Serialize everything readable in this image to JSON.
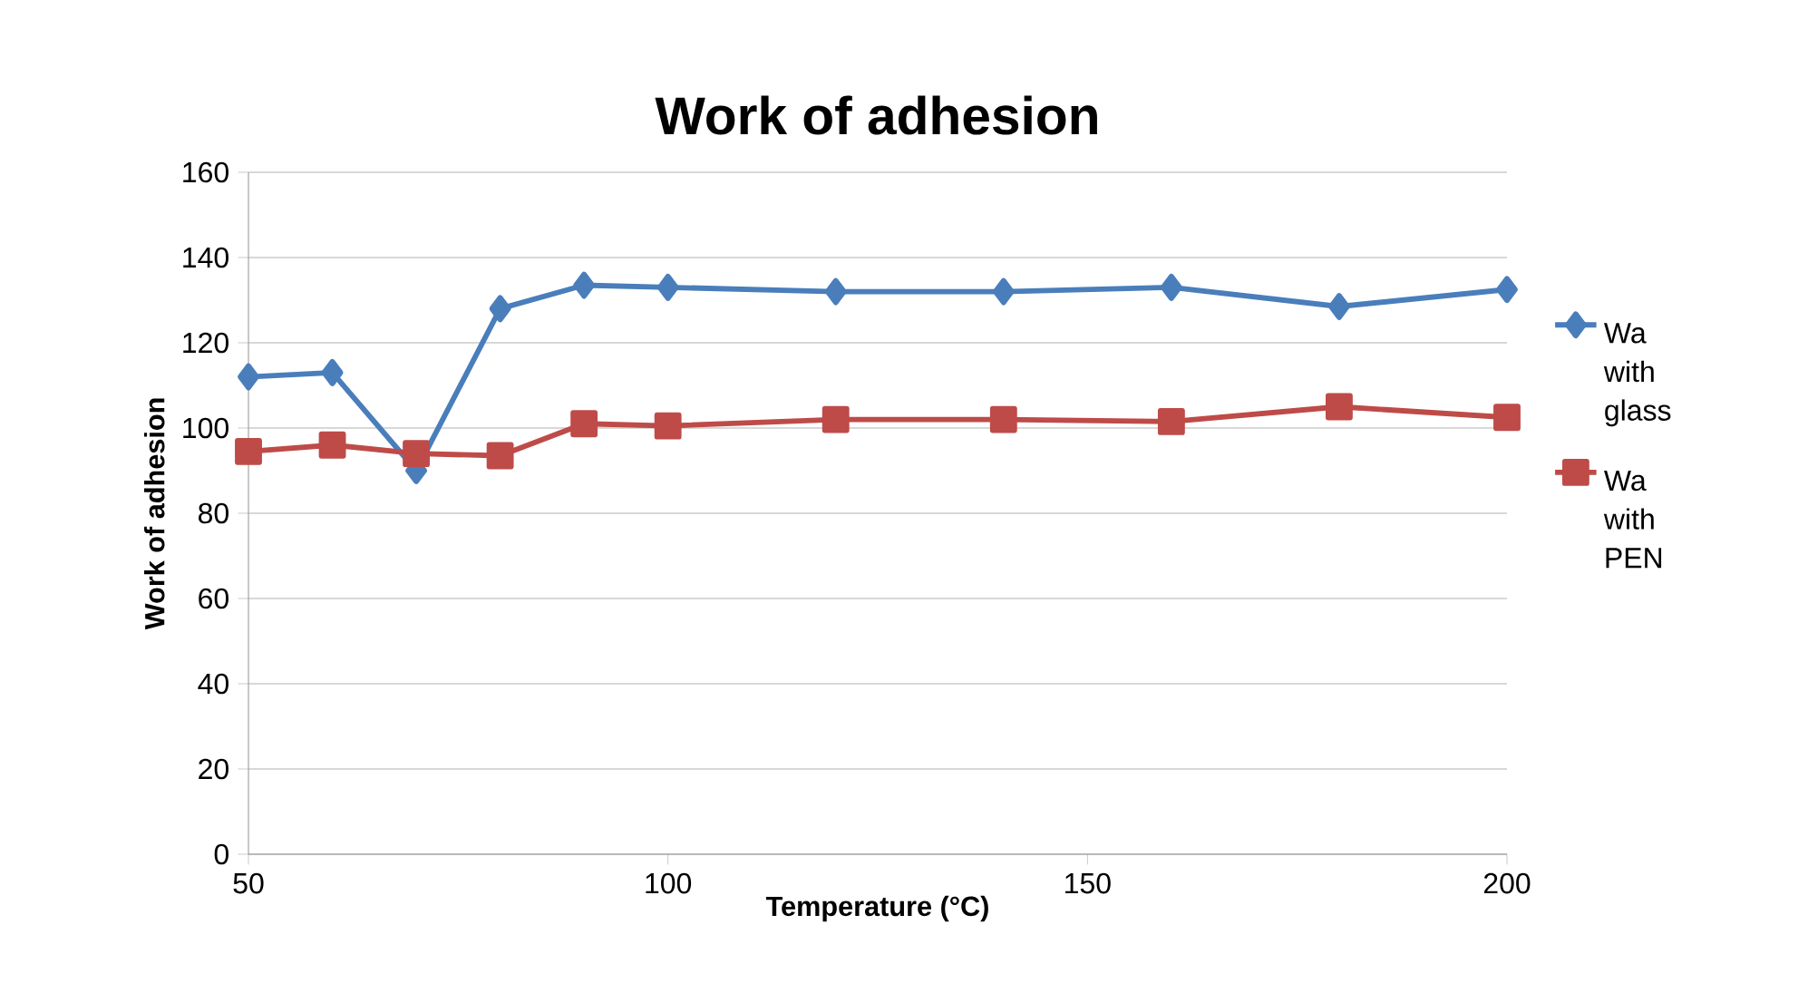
{
  "chart_data": {
    "type": "line",
    "title": "Work of adhesion",
    "xlabel": "Temperature (°C)",
    "ylabel": "Work of adhesion",
    "xlim": [
      50,
      200
    ],
    "xticks": [
      50,
      100,
      150,
      200
    ],
    "ylim": [
      0,
      160
    ],
    "yticks": [
      0,
      20,
      40,
      60,
      80,
      100,
      120,
      140,
      160
    ],
    "grid": "y",
    "legend": "right",
    "series": [
      {
        "name": "Wa with glass",
        "color": "#4a7ebb",
        "marker": "diamond",
        "x": [
          50,
          60,
          70,
          80,
          90,
          100,
          120,
          140,
          160,
          180,
          200
        ],
        "values": [
          112,
          113,
          90,
          128,
          133.5,
          133,
          132,
          132,
          133,
          128.5,
          132.5
        ]
      },
      {
        "name": "Wa with PEN",
        "color": "#be4b48",
        "marker": "square",
        "x": [
          50,
          60,
          70,
          80,
          90,
          100,
          120,
          140,
          160,
          180,
          200
        ],
        "values": [
          94.5,
          96,
          94,
          93.5,
          101,
          100.5,
          102,
          102,
          101.5,
          105,
          102.5
        ]
      }
    ]
  }
}
